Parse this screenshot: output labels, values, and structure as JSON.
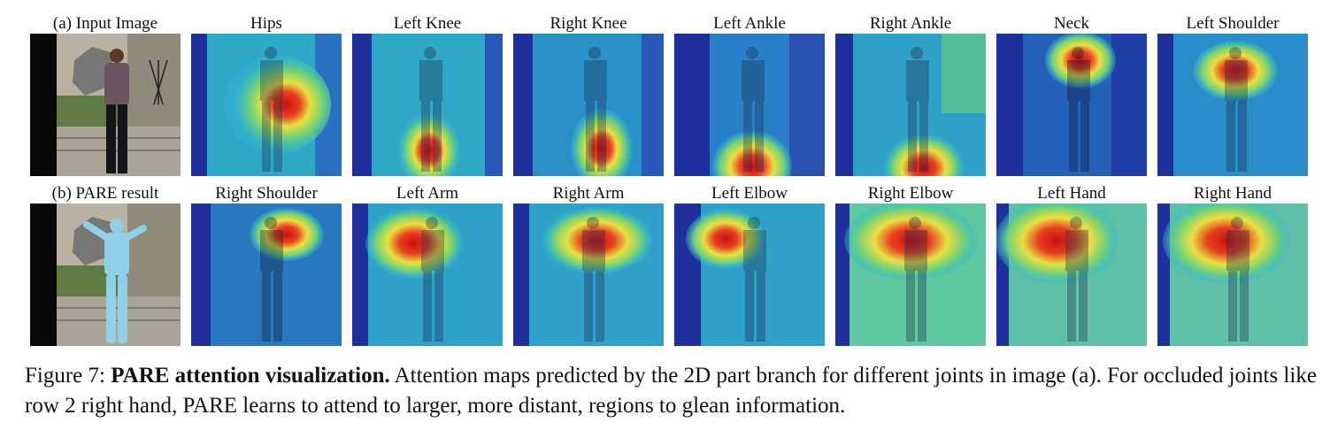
{
  "figure": {
    "rows": [
      {
        "input_label": "(a) Input Image",
        "labels": [
          "Hips",
          "Left Knee",
          "Right Knee",
          "Left Ankle",
          "Right Ankle",
          "Neck",
          "Left Shoulder"
        ]
      },
      {
        "input_label": "(b) PARE result",
        "labels": [
          "Right Shoulder",
          "Left Arm",
          "Right Arm",
          "Left Elbow",
          "Right Elbow",
          "Left Hand",
          "Right Hand"
        ]
      }
    ],
    "caption": {
      "prefix": "Figure 7: ",
      "title": "PARE attention visualization.",
      "text": " Attention maps predicted by the 2D part branch for different joints in image (a). For occluded joints like row 2 right hand, PARE learns to attend to larger, more distant, regions to glean information."
    },
    "colors": {
      "background_blue": "#1f2f9c",
      "mid_cyan": "#2fb8d8",
      "green": "#6fd07a",
      "yellow": "#e8e040",
      "hot_red": "#c81010",
      "mesh_blue": "#8fd0e8"
    }
  }
}
